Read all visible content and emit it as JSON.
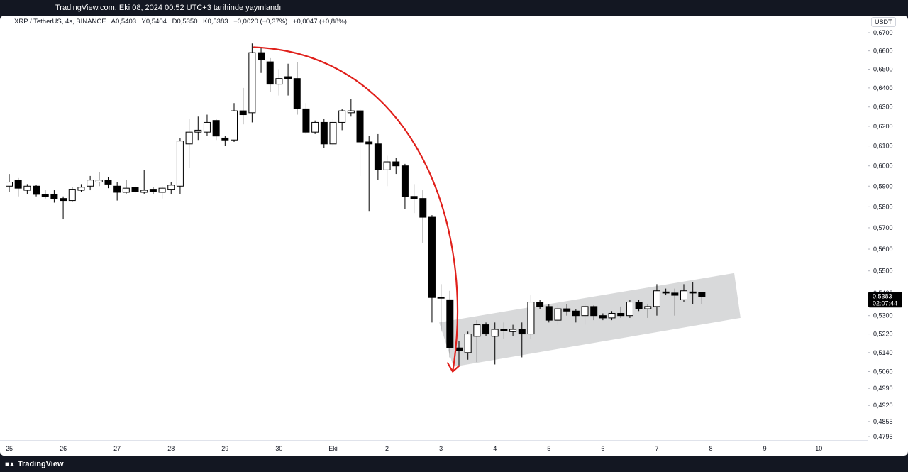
{
  "header": {
    "published_info": "TradingView.com, Eki 08, 2024 00:52 UTC+3 tarihinde yayınlandı"
  },
  "legend": {
    "symbol": "XRP / TetherUS, 4s, BINANCE",
    "open": "A0,5403",
    "high": "Y0,5404",
    "low": "D0,5350",
    "close": "K0,5383",
    "change": "−0,0020 (−0,37%)",
    "change_alt": "+0,0047 (+0,88%)"
  },
  "price_axis": {
    "currency": "USDT",
    "last_price": "0,5383",
    "countdown": "02:07:44"
  },
  "branding": {
    "logo_text": "TradingView"
  },
  "colors": {
    "up_body": "#ffffff",
    "down_body": "#000000",
    "wick": "#000000",
    "arrow": "#e0201b",
    "channel": "#d1d2d4",
    "price_label_bg": "#000000"
  },
  "chart_data": {
    "type": "candlestick",
    "scale": "log",
    "y_ticks": [
      0.67,
      0.66,
      0.65,
      0.64,
      0.63,
      0.62,
      0.61,
      0.6,
      0.59,
      0.58,
      0.57,
      0.56,
      0.55,
      0.54,
      0.53,
      0.522,
      0.514,
      0.506,
      0.499,
      0.492,
      0.4855,
      0.4795
    ],
    "y_tick_labels": [
      "0,6700",
      "0,6600",
      "0,6500",
      "0,6400",
      "0,6300",
      "0,6200",
      "0,6100",
      "0,6000",
      "0,5900",
      "0,5800",
      "0,5700",
      "0,5600",
      "0,5500",
      "0,5400",
      "0,5300",
      "0,5220",
      "0,5140",
      "0,5060",
      "0,4990",
      "0,4920",
      "0,4855",
      "0,4795"
    ],
    "x_ticks": [
      {
        "label": "25",
        "t": 0
      },
      {
        "label": "26",
        "t": 6
      },
      {
        "label": "27",
        "t": 12
      },
      {
        "label": "28",
        "t": 18
      },
      {
        "label": "29",
        "t": 24
      },
      {
        "label": "30",
        "t": 30
      },
      {
        "label": "Eki",
        "t": 36
      },
      {
        "label": "2",
        "t": 42
      },
      {
        "label": "3",
        "t": 48
      },
      {
        "label": "4",
        "t": 54
      },
      {
        "label": "5",
        "t": 60
      },
      {
        "label": "6",
        "t": 66
      },
      {
        "label": "7",
        "t": 72
      },
      {
        "label": "8",
        "t": 78
      },
      {
        "label": "9",
        "t": 84
      },
      {
        "label": "10",
        "t": 90
      }
    ],
    "candles": [
      {
        "t": 0.0,
        "o": 0.59,
        "h": 0.596,
        "l": 0.587,
        "c": 0.592
      },
      {
        "t": 1.0,
        "o": 0.593,
        "h": 0.594,
        "l": 0.585,
        "c": 0.589
      },
      {
        "t": 2.0,
        "o": 0.588,
        "h": 0.591,
        "l": 0.586,
        "c": 0.59
      },
      {
        "t": 3.0,
        "o": 0.59,
        "h": 0.5905,
        "l": 0.585,
        "c": 0.586
      },
      {
        "t": 4.0,
        "o": 0.586,
        "h": 0.588,
        "l": 0.584,
        "c": 0.585
      },
      {
        "t": 5.0,
        "o": 0.586,
        "h": 0.588,
        "l": 0.582,
        "c": 0.584
      },
      {
        "t": 6.0,
        "o": 0.584,
        "h": 0.585,
        "l": 0.574,
        "c": 0.583
      },
      {
        "t": 7.0,
        "o": 0.583,
        "h": 0.5895,
        "l": 0.5825,
        "c": 0.5885
      },
      {
        "t": 8.0,
        "o": 0.588,
        "h": 0.591,
        "l": 0.587,
        "c": 0.5895
      },
      {
        "t": 9.0,
        "o": 0.59,
        "h": 0.595,
        "l": 0.588,
        "c": 0.593
      },
      {
        "t": 10.0,
        "o": 0.592,
        "h": 0.597,
        "l": 0.59,
        "c": 0.593
      },
      {
        "t": 11.0,
        "o": 0.593,
        "h": 0.5945,
        "l": 0.589,
        "c": 0.591
      },
      {
        "t": 12.0,
        "o": 0.59,
        "h": 0.592,
        "l": 0.583,
        "c": 0.587
      },
      {
        "t": 13.0,
        "o": 0.587,
        "h": 0.593,
        "l": 0.586,
        "c": 0.589
      },
      {
        "t": 14.0,
        "o": 0.5895,
        "h": 0.5905,
        "l": 0.586,
        "c": 0.5875
      },
      {
        "t": 15.0,
        "o": 0.587,
        "h": 0.598,
        "l": 0.586,
        "c": 0.588
      },
      {
        "t": 16.0,
        "o": 0.5885,
        "h": 0.5895,
        "l": 0.586,
        "c": 0.5875
      },
      {
        "t": 17.0,
        "o": 0.587,
        "h": 0.59,
        "l": 0.584,
        "c": 0.589
      },
      {
        "t": 18.0,
        "o": 0.5885,
        "h": 0.592,
        "l": 0.586,
        "c": 0.5905
      },
      {
        "t": 19.0,
        "o": 0.59,
        "h": 0.614,
        "l": 0.586,
        "c": 0.6125
      },
      {
        "t": 20.0,
        "o": 0.611,
        "h": 0.624,
        "l": 0.599,
        "c": 0.617
      },
      {
        "t": 21.0,
        "o": 0.617,
        "h": 0.625,
        "l": 0.613,
        "c": 0.618
      },
      {
        "t": 22.0,
        "o": 0.617,
        "h": 0.626,
        "l": 0.615,
        "c": 0.622
      },
      {
        "t": 23.0,
        "o": 0.623,
        "h": 0.624,
        "l": 0.613,
        "c": 0.615
      },
      {
        "t": 24.0,
        "o": 0.614,
        "h": 0.615,
        "l": 0.61,
        "c": 0.613
      },
      {
        "t": 25.0,
        "o": 0.613,
        "h": 0.632,
        "l": 0.612,
        "c": 0.628
      },
      {
        "t": 26.0,
        "o": 0.628,
        "h": 0.64,
        "l": 0.621,
        "c": 0.626
      },
      {
        "t": 27.0,
        "o": 0.627,
        "h": 0.664,
        "l": 0.622,
        "c": 0.659
      },
      {
        "t": 28.0,
        "o": 0.659,
        "h": 0.662,
        "l": 0.648,
        "c": 0.655
      },
      {
        "t": 29.0,
        "o": 0.654,
        "h": 0.656,
        "l": 0.638,
        "c": 0.642
      },
      {
        "t": 30.0,
        "o": 0.642,
        "h": 0.65,
        "l": 0.636,
        "c": 0.645
      },
      {
        "t": 31.0,
        "o": 0.646,
        "h": 0.653,
        "l": 0.636,
        "c": 0.645
      },
      {
        "t": 32.0,
        "o": 0.645,
        "h": 0.654,
        "l": 0.626,
        "c": 0.629
      },
      {
        "t": 33.0,
        "o": 0.629,
        "h": 0.632,
        "l": 0.616,
        "c": 0.617
      },
      {
        "t": 34.0,
        "o": 0.617,
        "h": 0.623,
        "l": 0.616,
        "c": 0.622
      },
      {
        "t": 35.0,
        "o": 0.622,
        "h": 0.624,
        "l": 0.609,
        "c": 0.611
      },
      {
        "t": 36.0,
        "o": 0.611,
        "h": 0.624,
        "l": 0.61,
        "c": 0.622
      },
      {
        "t": 37.0,
        "o": 0.622,
        "h": 0.629,
        "l": 0.618,
        "c": 0.628
      },
      {
        "t": 38.0,
        "o": 0.627,
        "h": 0.634,
        "l": 0.625,
        "c": 0.628
      },
      {
        "t": 39.0,
        "o": 0.628,
        "h": 0.629,
        "l": 0.595,
        "c": 0.612
      },
      {
        "t": 40.0,
        "o": 0.612,
        "h": 0.615,
        "l": 0.578,
        "c": 0.611
      },
      {
        "t": 41.0,
        "o": 0.611,
        "h": 0.616,
        "l": 0.593,
        "c": 0.598
      },
      {
        "t": 42.0,
        "o": 0.598,
        "h": 0.605,
        "l": 0.59,
        "c": 0.602
      },
      {
        "t": 43.0,
        "o": 0.602,
        "h": 0.604,
        "l": 0.596,
        "c": 0.6
      },
      {
        "t": 44.0,
        "o": 0.6,
        "h": 0.601,
        "l": 0.579,
        "c": 0.585
      },
      {
        "t": 45.0,
        "o": 0.585,
        "h": 0.591,
        "l": 0.577,
        "c": 0.584
      },
      {
        "t": 46.0,
        "o": 0.584,
        "h": 0.588,
        "l": 0.563,
        "c": 0.575
      },
      {
        "t": 47.0,
        "o": 0.575,
        "h": 0.576,
        "l": 0.527,
        "c": 0.538
      },
      {
        "t": 48.0,
        "o": 0.538,
        "h": 0.544,
        "l": 0.523,
        "c": 0.538
      },
      {
        "t": 49.0,
        "o": 0.537,
        "h": 0.541,
        "l": 0.512,
        "c": 0.516
      },
      {
        "t": 50.0,
        "o": 0.516,
        "h": 0.519,
        "l": 0.508,
        "c": 0.515
      },
      {
        "t": 51.0,
        "o": 0.514,
        "h": 0.523,
        "l": 0.511,
        "c": 0.522
      },
      {
        "t": 52.0,
        "o": 0.521,
        "h": 0.528,
        "l": 0.51,
        "c": 0.526
      },
      {
        "t": 53.0,
        "o": 0.526,
        "h": 0.527,
        "l": 0.521,
        "c": 0.522
      },
      {
        "t": 54.0,
        "o": 0.521,
        "h": 0.527,
        "l": 0.509,
        "c": 0.524
      },
      {
        "t": 55.0,
        "o": 0.524,
        "h": 0.527,
        "l": 0.52,
        "c": 0.5235
      },
      {
        "t": 56.0,
        "o": 0.523,
        "h": 0.526,
        "l": 0.521,
        "c": 0.524
      },
      {
        "t": 57.0,
        "o": 0.524,
        "h": 0.527,
        "l": 0.512,
        "c": 0.522
      },
      {
        "t": 58.0,
        "o": 0.522,
        "h": 0.539,
        "l": 0.52,
        "c": 0.536
      },
      {
        "t": 59.0,
        "o": 0.536,
        "h": 0.537,
        "l": 0.533,
        "c": 0.534
      },
      {
        "t": 60.0,
        "o": 0.534,
        "h": 0.535,
        "l": 0.527,
        "c": 0.528
      },
      {
        "t": 61.0,
        "o": 0.528,
        "h": 0.535,
        "l": 0.526,
        "c": 0.533
      },
      {
        "t": 62.0,
        "o": 0.533,
        "h": 0.535,
        "l": 0.53,
        "c": 0.532
      },
      {
        "t": 63.0,
        "o": 0.532,
        "h": 0.533,
        "l": 0.527,
        "c": 0.53
      },
      {
        "t": 64.0,
        "o": 0.53,
        "h": 0.535,
        "l": 0.526,
        "c": 0.534
      },
      {
        "t": 65.0,
        "o": 0.534,
        "h": 0.5345,
        "l": 0.528,
        "c": 0.53
      },
      {
        "t": 66.0,
        "o": 0.53,
        "h": 0.531,
        "l": 0.528,
        "c": 0.529
      },
      {
        "t": 67.0,
        "o": 0.529,
        "h": 0.532,
        "l": 0.528,
        "c": 0.531
      },
      {
        "t": 68.0,
        "o": 0.531,
        "h": 0.534,
        "l": 0.529,
        "c": 0.53
      },
      {
        "t": 69.0,
        "o": 0.53,
        "h": 0.537,
        "l": 0.529,
        "c": 0.536
      },
      {
        "t": 70.0,
        "o": 0.536,
        "h": 0.537,
        "l": 0.532,
        "c": 0.533
      },
      {
        "t": 71.0,
        "o": 0.533,
        "h": 0.535,
        "l": 0.529,
        "c": 0.534
      },
      {
        "t": 72.0,
        "o": 0.534,
        "h": 0.544,
        "l": 0.53,
        "c": 0.541
      },
      {
        "t": 73.0,
        "o": 0.5405,
        "h": 0.542,
        "l": 0.539,
        "c": 0.54
      },
      {
        "t": 74.0,
        "o": 0.54,
        "h": 0.542,
        "l": 0.53,
        "c": 0.539
      },
      {
        "t": 75.0,
        "o": 0.537,
        "h": 0.544,
        "l": 0.536,
        "c": 0.541
      },
      {
        "t": 76.0,
        "o": 0.5405,
        "h": 0.545,
        "l": 0.535,
        "c": 0.54
      },
      {
        "t": 77.0,
        "o": 0.5403,
        "h": 0.5404,
        "l": 0.535,
        "c": 0.5383
      }
    ],
    "annotations": [
      {
        "type": "arrow-curve",
        "description": "red curved arrow",
        "from": {
          "t": 27.2,
          "price": 0.662
        },
        "to": {
          "t": 49.3,
          "price": 0.506
        }
      },
      {
        "type": "rising-channel",
        "description": "gray shaded parallelogram",
        "points": [
          {
            "t": 47.8,
            "price": 0.527
          },
          {
            "t": 80.6,
            "price": 0.549
          },
          {
            "t": 81.3,
            "price": 0.529
          },
          {
            "t": 49.4,
            "price": 0.508
          }
        ]
      }
    ]
  }
}
